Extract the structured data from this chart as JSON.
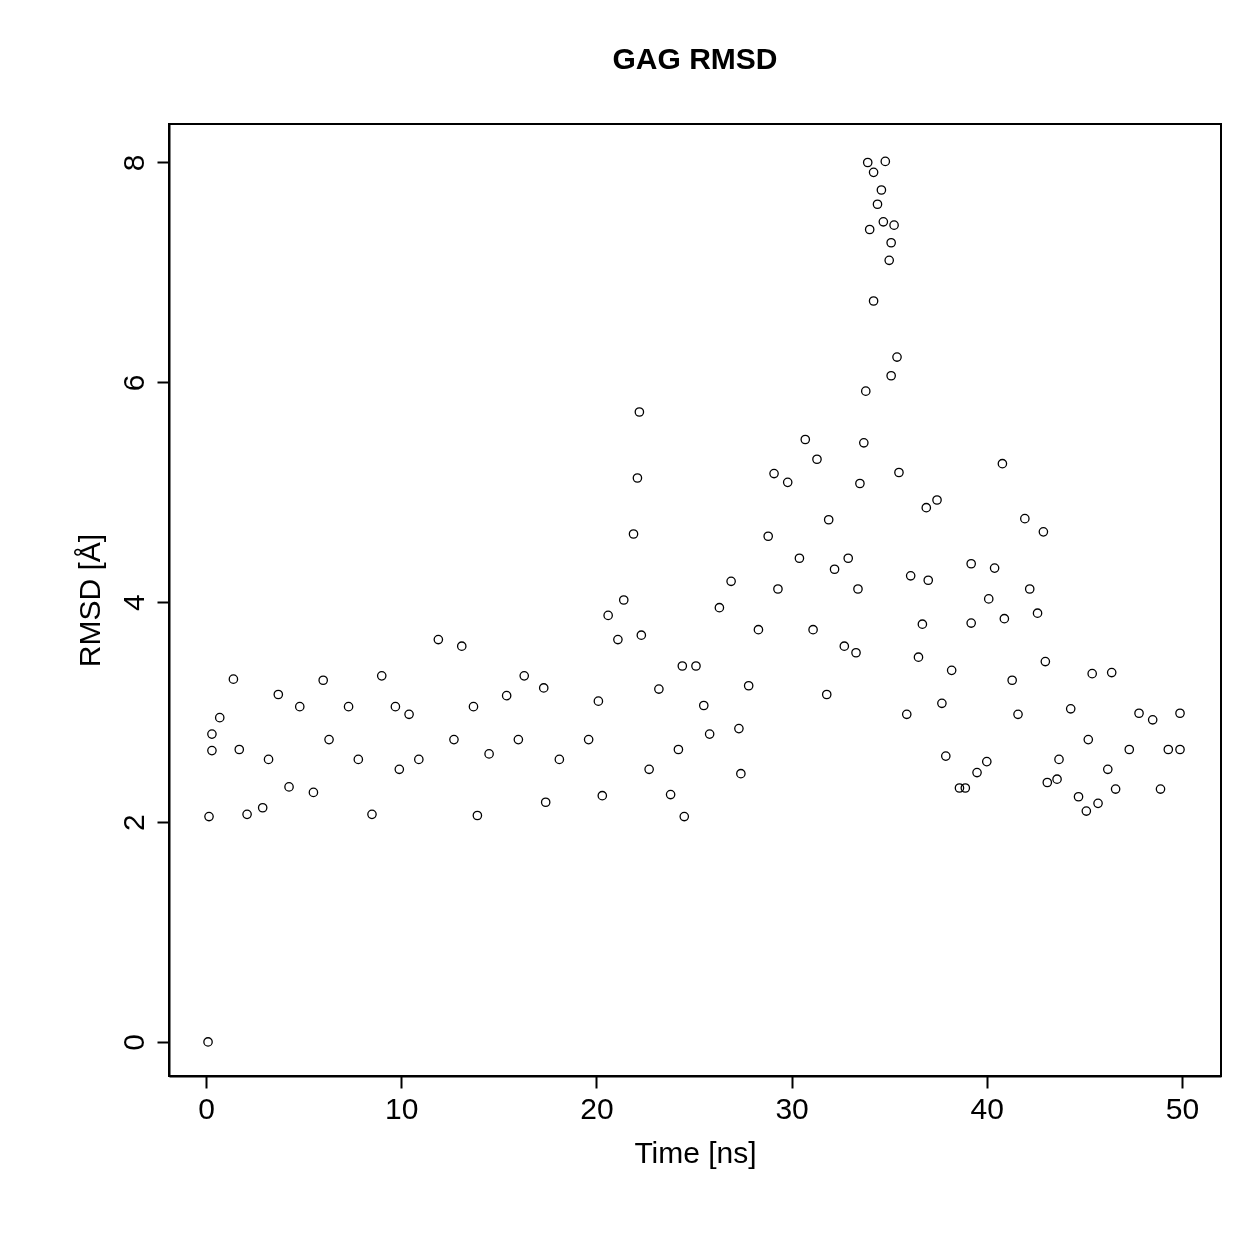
{
  "chart_data": {
    "type": "scatter",
    "title": "GAG RMSD",
    "xlabel": "Time [ns]",
    "ylabel": "RMSD [Å]",
    "xlim": [
      -1.9,
      52
    ],
    "ylim": [
      -0.31,
      8.35
    ],
    "xticks": [
      0,
      10,
      20,
      30,
      40,
      50
    ],
    "yticks": [
      0,
      2,
      4,
      6,
      8
    ],
    "marker": "circle",
    "series": [
      {
        "color": "#000000",
        "x": [
          0.1,
          0.15,
          0.3,
          0.3,
          0.7,
          1.4,
          1.7,
          2.1,
          2.9,
          3.2,
          3.7,
          4.25,
          4.8,
          5.5,
          6.0,
          6.3,
          7.3,
          7.8,
          8.5,
          9.0,
          9.7,
          9.9,
          10.4,
          10.9,
          11.9,
          12.7,
          13.1,
          13.7,
          13.9,
          14.5,
          15.4,
          16.0,
          16.3,
          17.3,
          17.4,
          18.1,
          19.6,
          20.1,
          20.3,
          20.6,
          21.1,
          21.4,
          21.9,
          22.1,
          22.2,
          22.3,
          22.7,
          23.2,
          23.8,
          24.2,
          24.4,
          24.5,
          25.1,
          25.5,
          25.8,
          26.3,
          26.9,
          27.3,
          27.4,
          27.8,
          28.3,
          28.8,
          29.1,
          29.3,
          29.8,
          30.4,
          30.7,
          31.1,
          31.3,
          31.8,
          31.9,
          32.2,
          32.7,
          32.9,
          33.3,
          33.4,
          33.5,
          33.7,
          33.8,
          33.9,
          34.0,
          34.2,
          34.2,
          34.4,
          34.6,
          34.7,
          34.8,
          35.0,
          35.1,
          35.1,
          35.25,
          35.4,
          35.5,
          35.9,
          36.1,
          36.5,
          36.7,
          36.9,
          37.0,
          37.45,
          37.7,
          37.9,
          38.2,
          38.6,
          38.9,
          39.2,
          39.2,
          39.5,
          40.0,
          40.1,
          40.4,
          40.8,
          40.9,
          41.3,
          41.6,
          41.95,
          42.2,
          42.6,
          42.9,
          43.0,
          43.1,
          43.6,
          43.7,
          44.3,
          44.7,
          45.1,
          45.2,
          45.4,
          45.7,
          46.2,
          46.4,
          46.6,
          47.3,
          47.8,
          48.5,
          48.9,
          49.3,
          49.9,
          49.9
        ],
        "values": [
          0,
          2.05,
          2.65,
          2.8,
          2.95,
          3.3,
          2.66,
          2.07,
          2.13,
          2.57,
          3.16,
          2.32,
          3.05,
          2.27,
          3.29,
          2.75,
          3.05,
          2.57,
          2.07,
          3.33,
          3.05,
          2.48,
          2.98,
          2.57,
          3.66,
          2.75,
          3.6,
          3.05,
          2.06,
          2.62,
          3.15,
          2.75,
          3.33,
          3.22,
          2.18,
          2.57,
          2.75,
          3.1,
          2.24,
          3.88,
          3.66,
          4.02,
          4.62,
          5.13,
          5.73,
          3.7,
          2.48,
          3.21,
          2.25,
          2.66,
          3.42,
          2.05,
          3.42,
          3.06,
          2.8,
          3.95,
          4.19,
          2.85,
          2.44,
          3.24,
          3.75,
          4.6,
          5.17,
          4.12,
          5.09,
          4.4,
          5.48,
          3.75,
          5.3,
          3.16,
          4.75,
          4.3,
          3.6,
          4.4,
          3.54,
          4.12,
          5.08,
          5.45,
          5.92,
          8.0,
          7.39,
          7.91,
          6.74,
          7.62,
          7.75,
          7.46,
          8.01,
          7.11,
          7.27,
          6.06,
          7.43,
          6.23,
          5.18,
          2.98,
          4.24,
          3.5,
          3.8,
          4.86,
          4.2,
          4.93,
          3.08,
          2.6,
          3.38,
          2.31,
          2.31,
          4.35,
          3.81,
          2.45,
          2.55,
          4.03,
          4.31,
          5.26,
          3.85,
          3.29,
          2.98,
          4.76,
          4.12,
          3.9,
          4.64,
          3.46,
          2.36,
          2.39,
          2.57,
          3.03,
          2.23,
          2.1,
          2.75,
          3.35,
          2.17,
          2.48,
          3.36,
          2.3,
          2.66,
          2.99,
          2.93,
          2.3,
          2.66,
          2.99,
          2.66
        ]
      }
    ]
  }
}
